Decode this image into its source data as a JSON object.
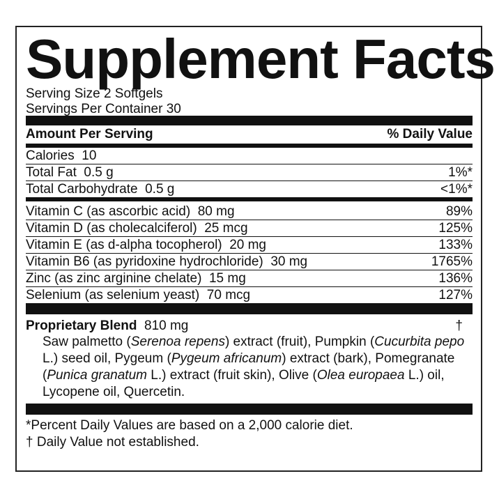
{
  "title": "Supplement Facts",
  "serving_size": "Serving Size 2 Softgels",
  "servings_per_container": "Servings Per Container 30",
  "header": {
    "amount": "Amount Per Serving",
    "dv": "% Daily Value"
  },
  "basic_rows": [
    {
      "name": "Calories  10",
      "dv": ""
    },
    {
      "name": "Total Fat  0.5 g",
      "dv": "1%*"
    },
    {
      "name": "Total Carbohydrate  0.5 g",
      "dv": "<1%*"
    }
  ],
  "vitamin_rows": [
    {
      "name": "Vitamin C (as ascorbic acid)  80 mg",
      "dv": "89%"
    },
    {
      "name": "Vitamin D (as cholecalciferol)  25 mcg",
      "dv": "125%"
    },
    {
      "name": "Vitamin E (as d-alpha tocopherol)  20 mg",
      "dv": "133%"
    },
    {
      "name": "Vitamin B6 (as pyridoxine hydrochloride)  30 mg",
      "dv": "1765%"
    },
    {
      "name": "Zinc (as zinc arginine chelate)  15 mg",
      "dv": "136%"
    },
    {
      "name": "Selenium (as selenium yeast)  70 mcg",
      "dv": "127%"
    }
  ],
  "blend": {
    "name": "Proprietary Blend",
    "amount": "810 mg",
    "dv": "†",
    "parts": [
      "Saw palmetto (",
      "Serenoa repens",
      ") extract (fruit), Pumpkin (",
      "Cucurbita pepo",
      " L.) seed oil, Pygeum (",
      "Pygeum africanum",
      ") extract (bark), Pomegranate (",
      "Punica granatum",
      " L.) extract (fruit skin), Olive (",
      "Olea europaea",
      " L.) oil, Lycopene oil, Quercetin."
    ]
  },
  "footnotes": [
    " *Percent Daily Values are based on a 2,000 calorie diet.",
    "† Daily Value not established."
  ]
}
